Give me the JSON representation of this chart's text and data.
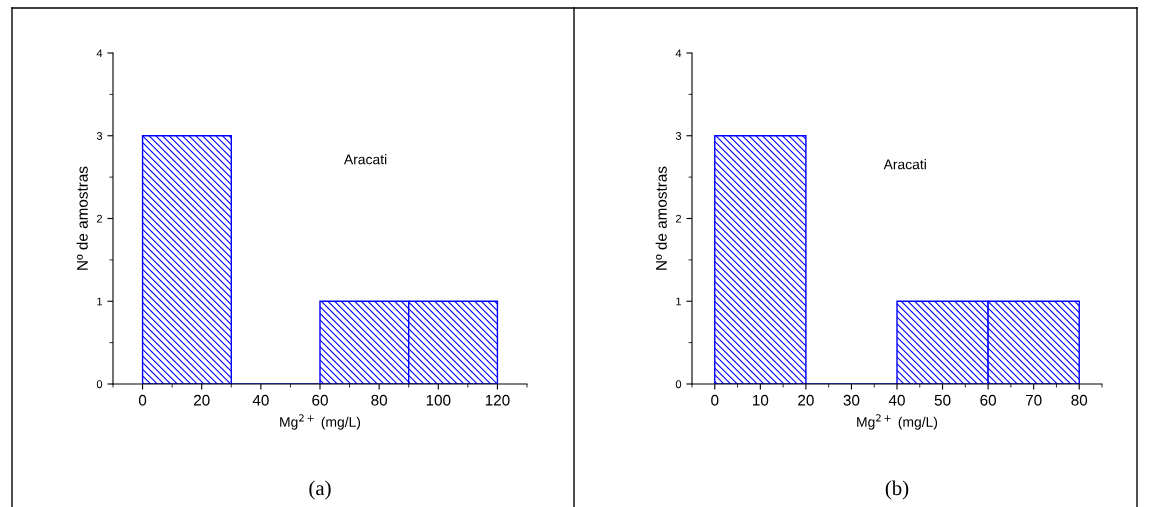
{
  "chart_data": [
    {
      "type": "histogram",
      "xlabel": "Mg$^{2+}$ (mg/L)",
      "ylabel": "Nº de amostras",
      "bins": [
        0,
        30,
        60,
        90,
        120
      ],
      "values": [
        3,
        0,
        1,
        1
      ],
      "color": "#0000ff",
      "xlim": [
        -10,
        130
      ],
      "xticks": [
        0,
        20,
        40,
        60,
        80,
        100,
        120
      ],
      "ylim": [
        0,
        4
      ],
      "yticks": [
        0,
        1,
        2,
        3,
        4
      ],
      "grid": false,
      "annotations": [
        "Aracati",
        "(a)"
      ]
    },
    {
      "type": "histogram",
      "xlabel": "Mg$^{2+}$ (mg/L)",
      "ylabel": "Nº de amostras",
      "bins": [
        0,
        20,
        40,
        60,
        80
      ],
      "values": [
        3,
        0,
        1,
        1
      ],
      "color": "#0000ff",
      "xlim": [
        -5,
        85
      ],
      "xticks": [
        0,
        10,
        20,
        30,
        40,
        50,
        60,
        70,
        80
      ],
      "ylim": [
        0,
        4
      ],
      "yticks": [
        0,
        1,
        2,
        3,
        4
      ],
      "grid": false,
      "annotations": [
        "Aracati",
        "(b)"
      ]
    }
  ]
}
